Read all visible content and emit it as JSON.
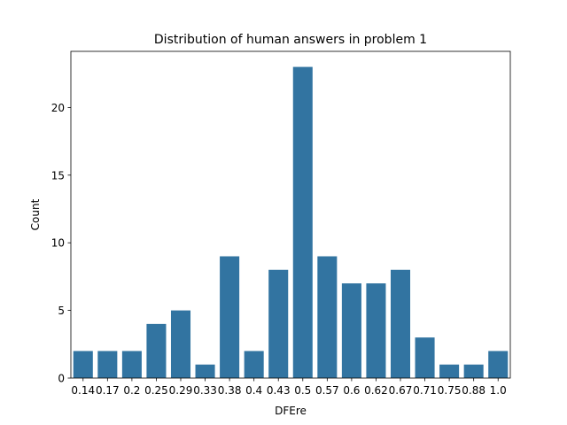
{
  "chart_data": {
    "type": "bar",
    "title": "Distribution of human answers in problem 1",
    "xlabel": "DFEre",
    "ylabel": "Count",
    "categories": [
      "0.14",
      "0.17",
      "0.2",
      "0.25",
      "0.29",
      "0.33",
      "0.38",
      "0.4",
      "0.43",
      "0.5",
      "0.57",
      "0.6",
      "0.62",
      "0.67",
      "0.71",
      "0.75",
      "0.88",
      "1.0"
    ],
    "values": [
      2,
      2,
      2,
      4,
      5,
      1,
      9,
      2,
      8,
      23,
      9,
      7,
      7,
      8,
      3,
      1,
      1,
      2
    ],
    "ylim": [
      0,
      24.15
    ],
    "yticks": [
      0,
      5,
      10,
      15,
      20
    ],
    "grid": false,
    "legend": "none",
    "bar_color": "#3274a1"
  }
}
